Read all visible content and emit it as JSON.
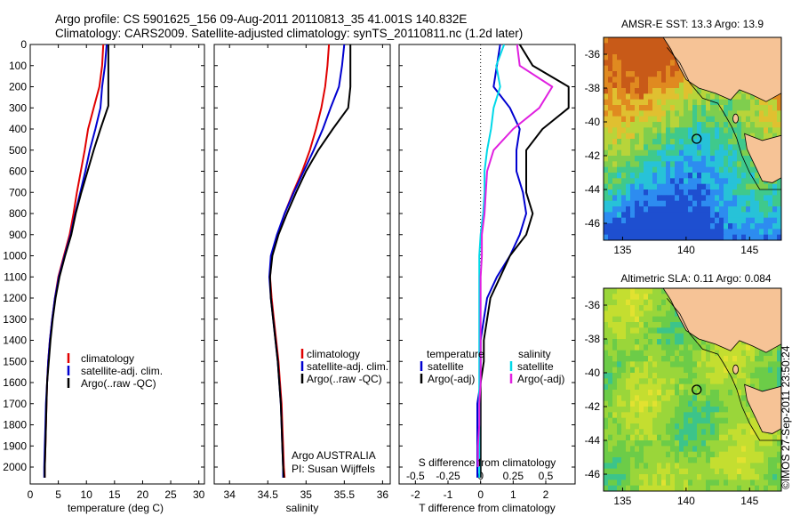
{
  "figure": {
    "title_line1": "Argo profile: CS 5901625_156 09-Aug-2011 20110813_35 41.001S 140.832E",
    "title_line2": "Climatology: CARS2009. Satellite-adjusted climatology: synTS_20110811.nc (1.2d later)",
    "footer": "©IMOS 27-Sep-2011 23:50:24",
    "colors": {
      "climatology": "#e00000",
      "satellite": "#0000d0",
      "argo": "#000000",
      "s_satellite": "#00d8e8",
      "s_argo": "#e020e0",
      "land": "#f6c396"
    }
  },
  "chart_data": [
    {
      "id": "temperature",
      "type": "line",
      "xlabel": "temperature (deg C)",
      "ylabel": "",
      "xlim": [
        0,
        31
      ],
      "ylim": [
        2080,
        0
      ],
      "xticks": [
        0,
        5,
        10,
        15,
        20,
        25,
        30
      ],
      "yticks": [
        0,
        100,
        200,
        300,
        400,
        500,
        600,
        700,
        800,
        900,
        1000,
        1100,
        1200,
        1300,
        1400,
        1500,
        1600,
        1700,
        1800,
        1900,
        2000
      ],
      "legend": [
        "climatology",
        "satellite-adj. clim.",
        "Argo(..raw -QC)"
      ],
      "legend_position": "lower-right",
      "series": [
        {
          "name": "climatology",
          "color": "#e00000",
          "x": [
            13.0,
            12.8,
            12.3,
            11.3,
            10.3,
            9.7,
            9.0,
            8.3,
            7.7,
            7.0,
            6.0,
            5.0,
            4.4,
            3.9,
            3.5,
            3.2,
            3.0,
            2.9,
            2.8,
            2.7,
            2.6,
            2.6
          ],
          "y": [
            0,
            100,
            200,
            300,
            400,
            500,
            600,
            700,
            800,
            900,
            1000,
            1100,
            1200,
            1300,
            1400,
            1500,
            1600,
            1700,
            1800,
            1900,
            2000,
            2050
          ]
        },
        {
          "name": "satellite-adj. clim.",
          "color": "#0000d0",
          "x": [
            13.6,
            13.3,
            12.8,
            12.5,
            11.6,
            10.6,
            9.8,
            8.9,
            8.0,
            7.2,
            6.1,
            5.1,
            4.4,
            3.9,
            3.5,
            3.2,
            3.0,
            2.8,
            2.7,
            2.6,
            2.5,
            2.5
          ],
          "y": [
            0,
            100,
            200,
            300,
            400,
            500,
            600,
            700,
            800,
            900,
            1000,
            1100,
            1200,
            1300,
            1400,
            1500,
            1600,
            1700,
            1800,
            1900,
            2000,
            2050
          ]
        },
        {
          "name": "Argo(..raw -QC)",
          "color": "#000000",
          "x": [
            13.9,
            13.9,
            13.9,
            13.9,
            12.5,
            11.3,
            10.2,
            9.1,
            8.1,
            7.3,
            6.2,
            5.2,
            4.5,
            4.0,
            3.6,
            3.3,
            3.0,
            2.9,
            2.8,
            2.7,
            2.6,
            2.6
          ],
          "y": [
            0,
            100,
            200,
            290,
            400,
            500,
            600,
            700,
            800,
            900,
            1000,
            1100,
            1200,
            1300,
            1400,
            1500,
            1600,
            1700,
            1800,
            1900,
            2000,
            2050
          ]
        }
      ]
    },
    {
      "id": "salinity",
      "type": "line",
      "xlabel": "salinity",
      "ylabel": "",
      "xlim": [
        33.8,
        36.1
      ],
      "ylim": [
        2080,
        0
      ],
      "xticks": [
        34,
        34.5,
        35,
        35.5,
        36
      ],
      "legend": [
        "climatology",
        "satellite-adj. clim.",
        "Argo(..raw -QC)"
      ],
      "legend_position": "lower-right",
      "annotation_lines": [
        "Argo AUSTRALIA",
        "PI: Susan Wijffels"
      ],
      "series": [
        {
          "name": "climatology",
          "color": "#e00000",
          "x": [
            35.3,
            35.28,
            35.25,
            35.2,
            35.13,
            35.05,
            34.95,
            34.83,
            34.72,
            34.63,
            34.55,
            34.53,
            34.55,
            34.58,
            34.61,
            34.64,
            34.66,
            34.68,
            34.69,
            34.7,
            34.71,
            34.72
          ],
          "y": [
            0,
            100,
            200,
            300,
            400,
            500,
            600,
            700,
            800,
            900,
            1000,
            1100,
            1200,
            1300,
            1400,
            1500,
            1600,
            1700,
            1800,
            1900,
            2000,
            2050
          ]
        },
        {
          "name": "satellite-adj. clim.",
          "color": "#0000d0",
          "x": [
            35.5,
            35.47,
            35.43,
            35.32,
            35.22,
            35.1,
            34.97,
            34.84,
            34.72,
            34.62,
            34.54,
            34.52,
            34.54,
            34.57,
            34.6,
            34.63,
            34.65,
            34.67,
            34.68,
            34.69,
            34.7,
            34.7
          ],
          "y": [
            0,
            100,
            200,
            300,
            400,
            500,
            600,
            700,
            800,
            900,
            1000,
            1100,
            1200,
            1300,
            1400,
            1500,
            1600,
            1700,
            1800,
            1900,
            2000,
            2050
          ]
        },
        {
          "name": "Argo(..raw -QC)",
          "color": "#000000",
          "x": [
            35.58,
            35.58,
            35.58,
            35.55,
            35.35,
            35.16,
            35.0,
            34.87,
            34.75,
            34.64,
            34.56,
            34.53,
            34.54,
            34.57,
            34.6,
            34.63,
            34.65,
            34.67,
            34.68,
            34.69,
            34.7,
            34.71
          ],
          "y": [
            0,
            100,
            200,
            300,
            400,
            500,
            600,
            700,
            800,
            900,
            1000,
            1100,
            1200,
            1300,
            1400,
            1500,
            1600,
            1700,
            1800,
            1900,
            2000,
            2050
          ]
        }
      ]
    },
    {
      "id": "difference",
      "type": "line",
      "xlabel": "T difference from climatology",
      "xlabel_top": "S difference from climatology",
      "xlim": [
        -2.5,
        2.9
      ],
      "ylim": [
        2080,
        0
      ],
      "xticks_T": [
        -2,
        -1,
        0,
        1,
        2
      ],
      "xticks_S": [
        -0.5,
        -0.25,
        0,
        0.25,
        0.5
      ],
      "legend_temperature": {
        "title": "temperature",
        "items": [
          "satellite",
          "Argo(-adj)"
        ]
      },
      "legend_salinity": {
        "title": "salinity",
        "items": [
          "satellite",
          "Argo(-adj)"
        ]
      },
      "series": [
        {
          "name": "temperature satellite",
          "color": "#0000d0",
          "x": [
            0.6,
            0.5,
            0.4,
            0.9,
            1.2,
            1.1,
            1.1,
            1.3,
            1.4,
            1.2,
            0.9,
            0.5,
            0.2,
            0.1,
            0.0,
            0.0,
            0.0,
            -0.1,
            -0.1,
            -0.1,
            -0.1,
            -0.1
          ],
          "y": [
            0,
            100,
            200,
            300,
            400,
            500,
            600,
            700,
            800,
            900,
            1000,
            1100,
            1200,
            1300,
            1400,
            1500,
            1600,
            1700,
            1800,
            1900,
            2000,
            2050
          ]
        },
        {
          "name": "temperature Argo(-adj)",
          "color": "#000000",
          "x": [
            1.2,
            1.6,
            2.7,
            2.7,
            1.9,
            1.4,
            1.4,
            1.4,
            1.6,
            1.4,
            0.9,
            0.6,
            0.3,
            0.2,
            0.1,
            0.1,
            0.0,
            0.0,
            0.0,
            0.0,
            0.0,
            0.0
          ],
          "y": [
            0,
            100,
            200,
            300,
            400,
            500,
            600,
            700,
            800,
            900,
            1000,
            1100,
            1200,
            1300,
            1400,
            1500,
            1600,
            1700,
            1800,
            1900,
            2000,
            2050
          ]
        },
        {
          "name": "salinity satellite",
          "color": "#00d8e8",
          "x": [
            0.18,
            0.12,
            0.15,
            0.1,
            0.08,
            0.05,
            0.03,
            0.03,
            0.02,
            0.0,
            -0.01,
            -0.01,
            -0.01,
            -0.01,
            -0.01,
            -0.01,
            -0.01,
            -0.01,
            -0.01,
            -0.01,
            -0.01,
            -0.01
          ],
          "y": [
            0,
            100,
            200,
            300,
            400,
            500,
            600,
            700,
            800,
            900,
            1000,
            1100,
            1200,
            1300,
            1400,
            1500,
            1600,
            1700,
            1800,
            1900,
            2000,
            2050
          ]
        },
        {
          "name": "salinity Argo(-adj)",
          "color": "#e020e0",
          "x": [
            0.28,
            0.3,
            0.55,
            0.45,
            0.25,
            0.1,
            0.05,
            0.04,
            0.03,
            0.01,
            0.01,
            0.0,
            0.0,
            0.0,
            0.0,
            0.0,
            0.0,
            -0.01,
            -0.01,
            -0.02,
            -0.02
          ],
          "y": [
            0,
            100,
            200,
            300,
            400,
            500,
            600,
            700,
            800,
            900,
            1000,
            1100,
            1200,
            1300,
            1400,
            1500,
            1600,
            1700,
            1800,
            1900,
            2000
          ]
        }
      ]
    },
    {
      "id": "sst-map",
      "type": "heatmap",
      "title": "AMSR-E SST: 13.3 Argo: 13.9",
      "xlim": [
        133.5,
        147.5
      ],
      "ylim": [
        -47,
        -35
      ],
      "xticks": [
        135,
        140,
        145
      ],
      "yticks": [
        -36,
        -38,
        -40,
        -42,
        -44,
        -46
      ],
      "marker": {
        "lon": 140.832,
        "lat": -41.001
      },
      "palette": [
        "#1e4fd0",
        "#2d8cf0",
        "#27c2d8",
        "#3fc98c",
        "#7fce4e",
        "#b8d43a",
        "#e0c030",
        "#e08a20",
        "#c85a18"
      ]
    },
    {
      "id": "sla-map",
      "type": "heatmap",
      "title": "Altimetric SLA: 0.11 Argo: 0.084",
      "xlim": [
        133.5,
        147.5
      ],
      "ylim": [
        -47,
        -35
      ],
      "xticks": [
        135,
        140,
        145
      ],
      "yticks": [
        -36,
        -38,
        -40,
        -42,
        -44,
        -46
      ],
      "marker": {
        "lon": 140.832,
        "lat": -41.001
      },
      "palette": [
        "#22b8d8",
        "#3cc48a",
        "#6ccc48",
        "#9ad63a",
        "#c4de30",
        "#e2e230"
      ]
    }
  ]
}
